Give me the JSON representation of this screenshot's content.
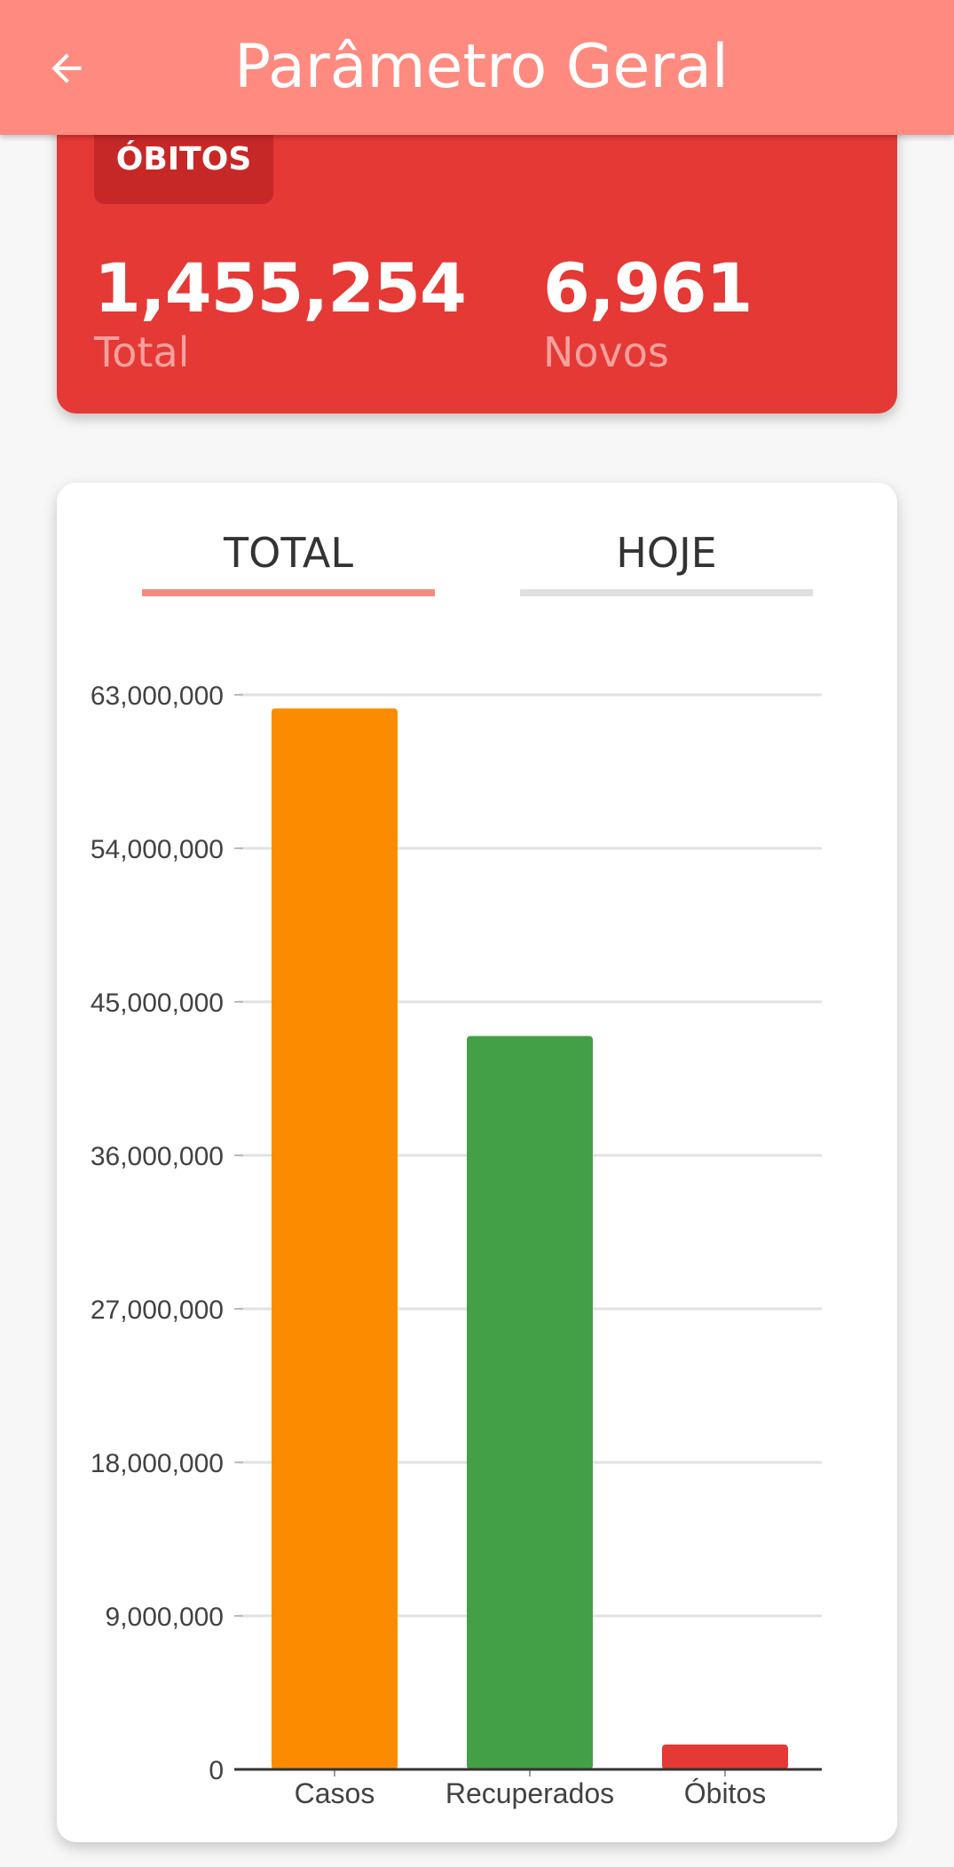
{
  "app_bar": {
    "title": "Parâmetro Geral",
    "back_icon": "arrow-left-icon"
  },
  "deaths_card": {
    "label": "ÓBITOS",
    "total_value": "1,455,254",
    "total_label": "Total",
    "new_value": "6,961",
    "new_label": "Novos"
  },
  "tabs": [
    {
      "label": "TOTAL",
      "active": true
    },
    {
      "label": "HOJE",
      "active": false
    }
  ],
  "colors": {
    "app_bar": "#ff8a80",
    "deaths_card": "#e53935",
    "casos": "#fb8c00",
    "recuperados": "#43a047",
    "obitos": "#e53935",
    "tab_active": "#f28b82"
  },
  "chart_data": {
    "type": "bar",
    "categories": [
      "Casos",
      "Recuperados",
      "Óbitos"
    ],
    "values": [
      62200000,
      43000000,
      1455254
    ],
    "colors": [
      "#fb8c00",
      "#43a047",
      "#e53935"
    ],
    "ylim": [
      0,
      63000000
    ],
    "yticks": [
      0,
      9000000,
      18000000,
      27000000,
      36000000,
      45000000,
      54000000,
      63000000
    ],
    "ytick_labels": [
      "0",
      "9,000,000",
      "18,000,000",
      "27,000,000",
      "36,000,000",
      "45,000,000",
      "54,000,000",
      "63,000,000"
    ],
    "grid": true,
    "title": "",
    "xlabel": "",
    "ylabel": ""
  }
}
